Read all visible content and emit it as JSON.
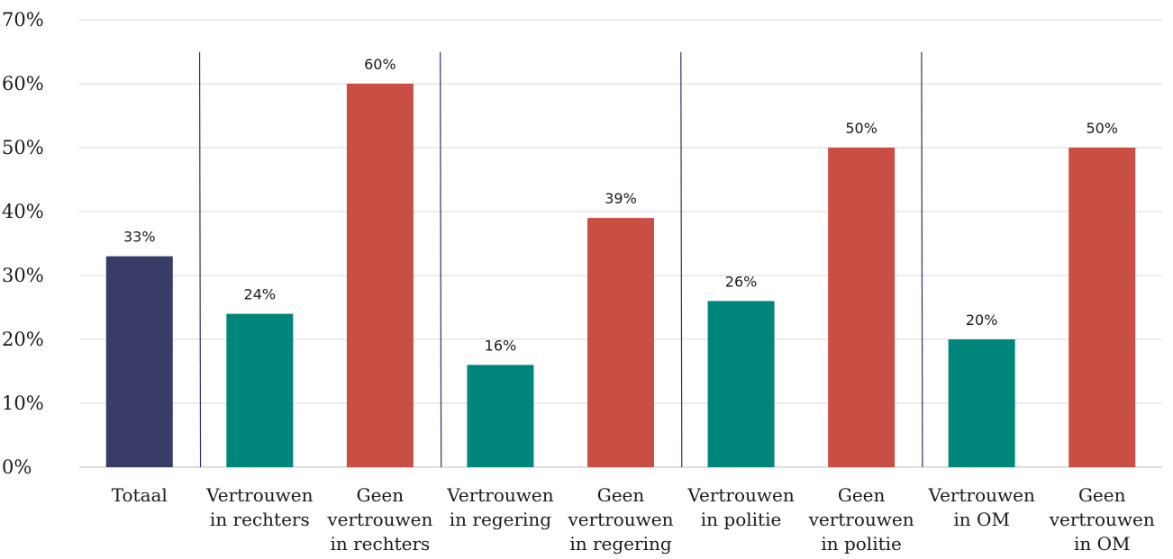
{
  "chart_data": {
    "type": "bar",
    "title": "",
    "xlabel": "",
    "ylabel": "",
    "ylim": [
      0,
      70
    ],
    "yticks": [
      0,
      10,
      20,
      30,
      40,
      50,
      60,
      70
    ],
    "ytick_suffix": "%",
    "grid": true,
    "categories": [
      [
        "Totaal"
      ],
      [
        "Vertrouwen",
        "in rechters"
      ],
      [
        "Geen",
        "vertrouwen",
        "in rechters"
      ],
      [
        "Vertrouwen",
        "in regering"
      ],
      [
        "Geen",
        "vertrouwen",
        "in regering"
      ],
      [
        "Vertrouwen",
        "in politie"
      ],
      [
        "Geen",
        "vertrouwen",
        "in politie"
      ],
      [
        "Vertrouwen",
        "in OM"
      ],
      [
        "Geen",
        "vertrouwen",
        "in OM"
      ]
    ],
    "values": [
      33,
      24,
      60,
      16,
      39,
      26,
      50,
      20,
      50
    ],
    "data_labels": [
      "33%",
      "24%",
      "60%",
      "16%",
      "39%",
      "26%",
      "50%",
      "20%",
      "50%"
    ],
    "bar_colors": [
      "#383c66",
      "#00857a",
      "#c94e43",
      "#00857a",
      "#c94e43",
      "#00857a",
      "#c94e43",
      "#00857a",
      "#c94e43"
    ],
    "group_separators_after": [
      0,
      2,
      4,
      6
    ]
  }
}
